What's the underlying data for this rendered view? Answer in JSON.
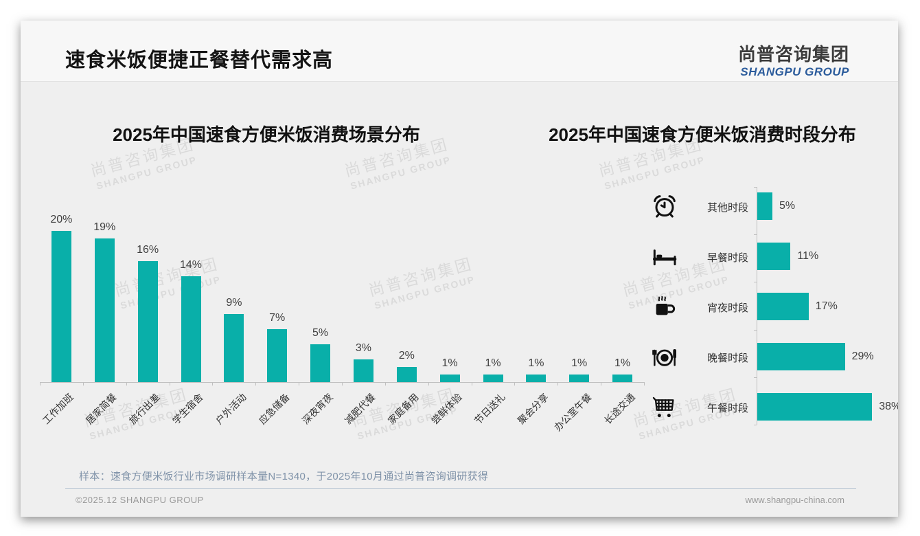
{
  "header": {
    "title": "速食米饭便捷正餐替代需求高"
  },
  "logo": {
    "cn": "尚普咨询集团",
    "en": "SHANGPU GROUP"
  },
  "watermark": {
    "line1": "尚普咨询集团",
    "line2": "SHANGPU GROUP"
  },
  "colors": {
    "bar_teal": "#09afa9",
    "logo_blue": "#2c5c9c",
    "note_blue_gray": "#8093a9"
  },
  "chart_data": [
    {
      "type": "bar",
      "orientation": "vertical",
      "title": "2025年中国速食方便米饭消费场景分布",
      "categories": [
        "工作加班",
        "居家简餐",
        "旅行出差",
        "学生宿舍",
        "户外活动",
        "应急储备",
        "深夜宵夜",
        "减肥代餐",
        "家庭备用",
        "尝鲜体验",
        "节日送礼",
        "聚会分享",
        "办公室午餐",
        "长途交通"
      ],
      "values": [
        20,
        19,
        16,
        14,
        9,
        7,
        5,
        3,
        2,
        1,
        1,
        1,
        1,
        1
      ],
      "data_labels": [
        "20%",
        "19%",
        "16%",
        "14%",
        "9%",
        "7%",
        "5%",
        "3%",
        "2%",
        "1%",
        "1%",
        "1%",
        "1%",
        "1%"
      ],
      "unit": "%",
      "ylim": [
        0,
        22
      ],
      "grid": false,
      "legend": "none"
    },
    {
      "type": "bar",
      "orientation": "horizontal",
      "title": "2025年中国速食方便米饭消费时段分布",
      "categories": [
        "其他时段",
        "早餐时段",
        "宵夜时段",
        "晚餐时段",
        "午餐时段"
      ],
      "values": [
        5,
        11,
        17,
        29,
        38
      ],
      "data_labels": [
        "5%",
        "11%",
        "17%",
        "29%",
        "38%"
      ],
      "icons": [
        "alarm-clock-icon",
        "bed-icon",
        "hot-drink-icon",
        "dinner-plate-icon",
        "shopping-cart-icon"
      ],
      "unit": "%",
      "xlim": [
        0,
        42
      ],
      "grid": false,
      "legend": "none"
    }
  ],
  "footnote": "样本：速食方便米饭行业市场调研样本量N=1340，于2025年10月通过尚普咨询调研获得",
  "footer": {
    "copyright": "©2025.12 SHANGPU GROUP",
    "website": "www.shangpu-china.com"
  }
}
